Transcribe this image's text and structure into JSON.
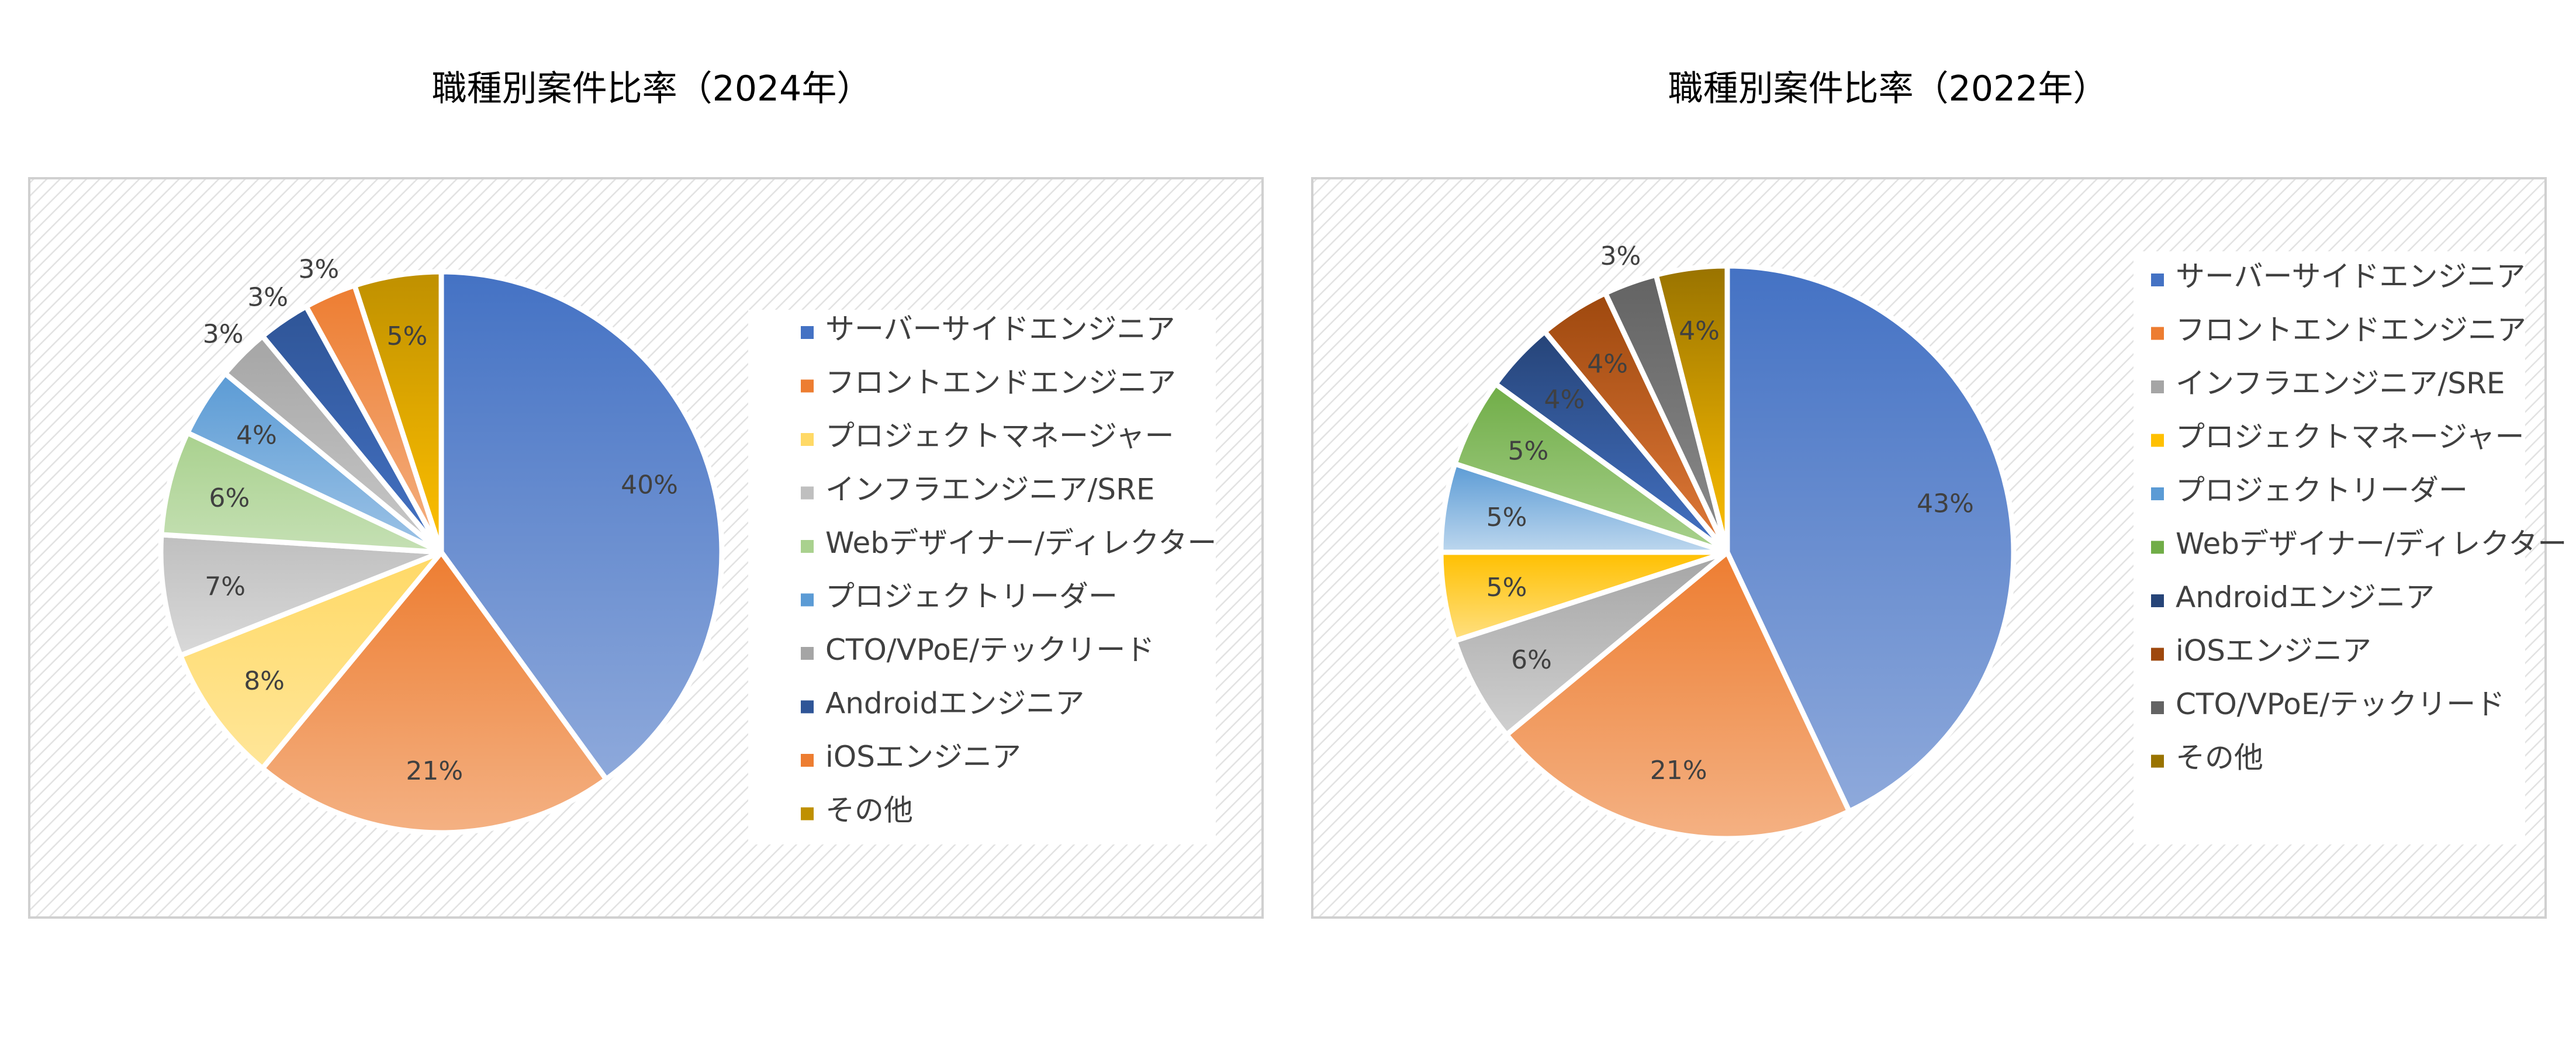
{
  "chart_data": [
    {
      "type": "pie",
      "title": "職種別案件比率（2024年）",
      "slices": [
        {
          "label": "サーバーサイドエンジニア",
          "value": 40,
          "value_label": "40%",
          "color": "#4472C4",
          "color_light": "#8EA9DB"
        },
        {
          "label": "フロントエンドエンジニア",
          "value": 21,
          "value_label": "21%",
          "color": "#ED7D31",
          "color_light": "#F4B183"
        },
        {
          "label": "プロジェクトマネージャー",
          "value": 8,
          "value_label": "8%",
          "color": "#FFD966",
          "color_light": "#FFE699"
        },
        {
          "label": "インフラエンジニア/SRE",
          "value": 7,
          "value_label": "7%",
          "color": "#BFBFBF",
          "color_light": "#D9D9D9"
        },
        {
          "label": "Webデザイナー/ディレクター",
          "value": 6,
          "value_label": "6%",
          "color": "#A9D18E",
          "color_light": "#C5E0B4"
        },
        {
          "label": "プロジェクトリーダー",
          "value": 4,
          "value_label": "4%",
          "color": "#5B9BD5",
          "color_light": "#9DC3E6"
        },
        {
          "label": "CTO/VPoE/テックリード",
          "value": 3,
          "value_label": "3%",
          "color": "#A5A5A5",
          "color_light": "#C9C9C9"
        },
        {
          "label": "Androidエンジニア",
          "value": 3,
          "value_label": "3%",
          "color": "#2F5597",
          "color_light": "#4472C4"
        },
        {
          "label": "iOSエンジニア",
          "value": 3,
          "value_label": "3%",
          "color": "#ED7D31",
          "color_light": "#F4B183"
        },
        {
          "label": "その他",
          "value": 5,
          "value_label": "5%",
          "color": "#BF9000",
          "color_light": "#FFC000"
        }
      ],
      "legend_position": "right"
    },
    {
      "type": "pie",
      "title": "職種別案件比率（2022年）",
      "slices": [
        {
          "label": "サーバーサイドエンジニア",
          "value": 43,
          "value_label": "43%",
          "color": "#4472C4",
          "color_light": "#8EA9DB"
        },
        {
          "label": "フロントエンドエンジニア",
          "value": 21,
          "value_label": "21%",
          "color": "#ED7D31",
          "color_light": "#F4B183"
        },
        {
          "label": "インフラエンジニア/SRE",
          "value": 6,
          "value_label": "6%",
          "color": "#A5A5A5",
          "color_light": "#D0D0D0"
        },
        {
          "label": "プロジェクトマネージャー",
          "value": 5,
          "value_label": "5%",
          "color": "#FFC000",
          "color_light": "#FFE082"
        },
        {
          "label": "プロジェクトリーダー",
          "value": 5,
          "value_label": "5%",
          "color": "#5B9BD5",
          "color_light": "#BDD7EE"
        },
        {
          "label": "Webデザイナー/ディレクター",
          "value": 5,
          "value_label": "5%",
          "color": "#70AD47",
          "color_light": "#A9D18E"
        },
        {
          "label": "Androidエンジニア",
          "value": 4,
          "value_label": "4%",
          "color": "#264478",
          "color_light": "#4472C4"
        },
        {
          "label": "iOSエンジニア",
          "value": 4,
          "value_label": "4%",
          "color": "#9E480E",
          "color_light": "#E07A3A"
        },
        {
          "label": "CTO/VPoE/テックリード",
          "value": 3,
          "value_label": "3%",
          "color": "#636363",
          "color_light": "#8C8C8C"
        },
        {
          "label": "その他",
          "value": 4,
          "value_label": "4%",
          "color": "#997300",
          "color_light": "#FFC000"
        }
      ],
      "legend_position": "right"
    }
  ]
}
